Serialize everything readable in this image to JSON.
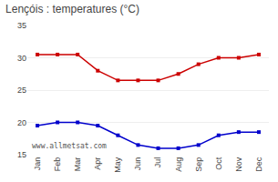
{
  "chart_data": {
    "type": "line",
    "title": "Lençóis : temperatures (°C)",
    "categories": [
      "Jan",
      "Feb",
      "Mar",
      "Apr",
      "May",
      "Jun",
      "Jul",
      "Aug",
      "Sep",
      "Oct",
      "Nov",
      "Dec"
    ],
    "series": [
      {
        "color": "#cc0000",
        "values": [
          30.5,
          30.5,
          30.5,
          28.0,
          26.5,
          26.5,
          26.5,
          27.5,
          29.0,
          30.0,
          30.0,
          30.5
        ]
      },
      {
        "color": "#0000cc",
        "values": [
          19.5,
          20.0,
          20.0,
          19.5,
          18.0,
          16.5,
          16.0,
          16.0,
          16.5,
          18.0,
          18.5,
          18.5
        ]
      }
    ],
    "marker": "square",
    "ylim": [
      15,
      35
    ],
    "yticks": [
      15,
      20,
      25,
      30,
      35
    ],
    "grid": "y",
    "annotations": [
      "www.allmetsat.com"
    ]
  }
}
